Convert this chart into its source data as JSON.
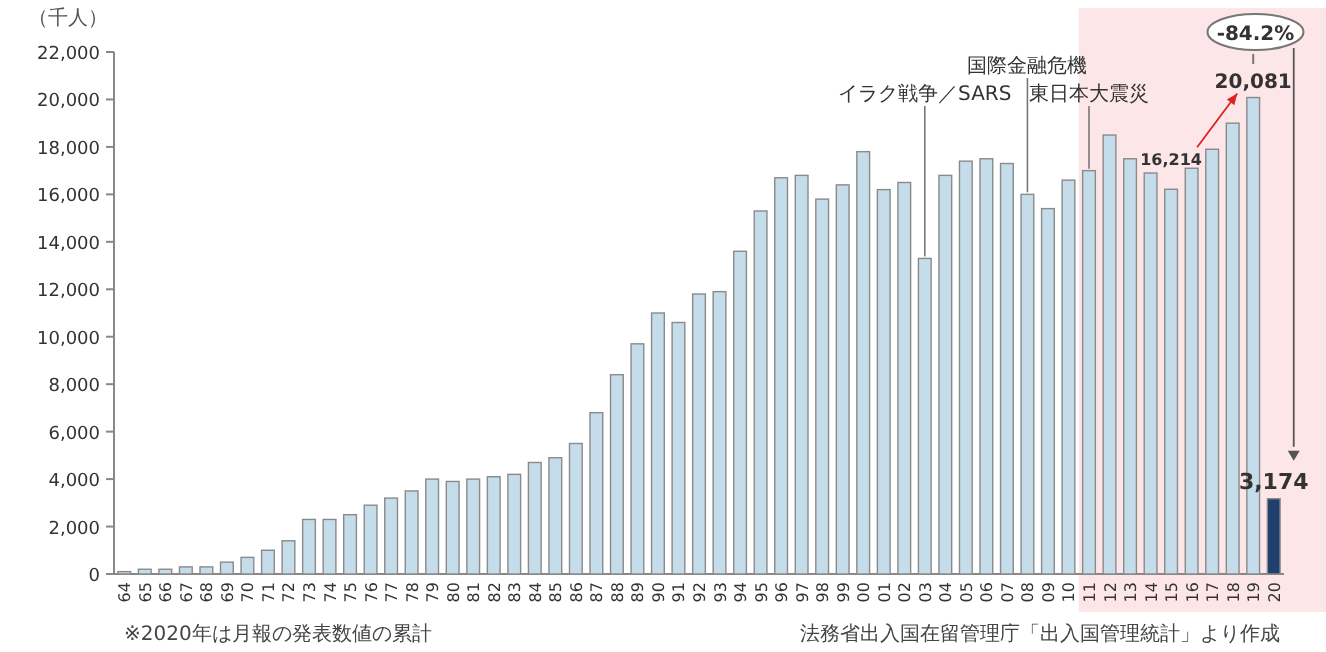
{
  "chart_data": {
    "type": "bar",
    "ylabel": "（千人）",
    "categories": [
      "64",
      "65",
      "66",
      "67",
      "68",
      "69",
      "70",
      "71",
      "72",
      "73",
      "74",
      "75",
      "76",
      "77",
      "78",
      "79",
      "80",
      "81",
      "82",
      "83",
      "84",
      "85",
      "86",
      "87",
      "88",
      "89",
      "90",
      "91",
      "92",
      "93",
      "94",
      "95",
      "96",
      "97",
      "98",
      "99",
      "00",
      "01",
      "02",
      "03",
      "04",
      "05",
      "06",
      "07",
      "08",
      "09",
      "10",
      "11",
      "12",
      "13",
      "14",
      "15",
      "16",
      "17",
      "18",
      "19",
      "20"
    ],
    "values": [
      100,
      200,
      200,
      300,
      300,
      500,
      700,
      1000,
      1400,
      2300,
      2300,
      2500,
      2900,
      3200,
      3500,
      4000,
      3900,
      4000,
      4100,
      4200,
      4700,
      4900,
      5500,
      6800,
      8400,
      9700,
      11000,
      10600,
      11800,
      11900,
      13600,
      15300,
      16700,
      16800,
      15800,
      16400,
      17800,
      16200,
      16500,
      13300,
      16800,
      17400,
      17500,
      17300,
      16000,
      15400,
      16600,
      17000,
      18500,
      17500,
      16900,
      16214,
      17100,
      17900,
      19000,
      20081,
      3174
    ],
    "colors": [
      "#c5dcea",
      "#c5dcea",
      "#c5dcea",
      "#c5dcea",
      "#c5dcea",
      "#c5dcea",
      "#c5dcea",
      "#c5dcea",
      "#c5dcea",
      "#c5dcea",
      "#c5dcea",
      "#c5dcea",
      "#c5dcea",
      "#c5dcea",
      "#c5dcea",
      "#c5dcea",
      "#c5dcea",
      "#c5dcea",
      "#c5dcea",
      "#c5dcea",
      "#c5dcea",
      "#c5dcea",
      "#c5dcea",
      "#c5dcea",
      "#c5dcea",
      "#c5dcea",
      "#c5dcea",
      "#c5dcea",
      "#c5dcea",
      "#c5dcea",
      "#c5dcea",
      "#c5dcea",
      "#c5dcea",
      "#c5dcea",
      "#c5dcea",
      "#c5dcea",
      "#c5dcea",
      "#c5dcea",
      "#c5dcea",
      "#c5dcea",
      "#c5dcea",
      "#c5dcea",
      "#c5dcea",
      "#c5dcea",
      "#c5dcea",
      "#c5dcea",
      "#c5dcea",
      "#c5dcea",
      "#c5dcea",
      "#c5dcea",
      "#c5dcea",
      "#c5dcea",
      "#c5dcea",
      "#c5dcea",
      "#c5dcea",
      "#c5dcea",
      "#1f3f6e"
    ],
    "value_labels": [
      null,
      null,
      null,
      null,
      null,
      null,
      null,
      null,
      null,
      null,
      null,
      null,
      null,
      null,
      null,
      null,
      null,
      null,
      null,
      null,
      null,
      null,
      null,
      null,
      null,
      null,
      null,
      null,
      null,
      null,
      null,
      null,
      null,
      null,
      null,
      null,
      null,
      null,
      null,
      null,
      null,
      null,
      null,
      null,
      null,
      null,
      null,
      null,
      null,
      null,
      null,
      "16,214",
      null,
      null,
      null,
      "20,081",
      "3,174"
    ],
    "ylim": [
      0,
      22000
    ],
    "yticks": [
      0,
      {
        "value": 2000,
        "label": "2,000"
      },
      {
        "value": 4000,
        "label": "4,000"
      },
      {
        "value": 6000,
        "label": "6,000"
      },
      {
        "value": 8000,
        "label": "8,000"
      },
      {
        "value": 10000,
        "label": "10,000"
      },
      {
        "value": 12000,
        "label": "12,000"
      },
      {
        "value": 14000,
        "label": "14,000"
      },
      {
        "value": 16000,
        "label": "16,000"
      },
      {
        "value": 18000,
        "label": "18,000"
      },
      {
        "value": 20000,
        "label": "20,000"
      },
      {
        "value": 22000,
        "label": "22,000"
      }
    ],
    "bands": [
      {
        "axis": "x",
        "from": "11",
        "to": "20",
        "color": "#fde6e8"
      }
    ],
    "annotations": [
      {
        "text": "イラク戦争／SARS",
        "x": "03",
        "y": 13300
      },
      {
        "text": "国際金融危機",
        "x": "08",
        "y": 16000
      },
      {
        "text": "東日本大震災",
        "x": "11",
        "y": 17000
      },
      "-84.2%",
      "※2020年は月報の発表数値の累計",
      "法務省出入国在留管理庁「出入国管理統計」より作成"
    ]
  }
}
